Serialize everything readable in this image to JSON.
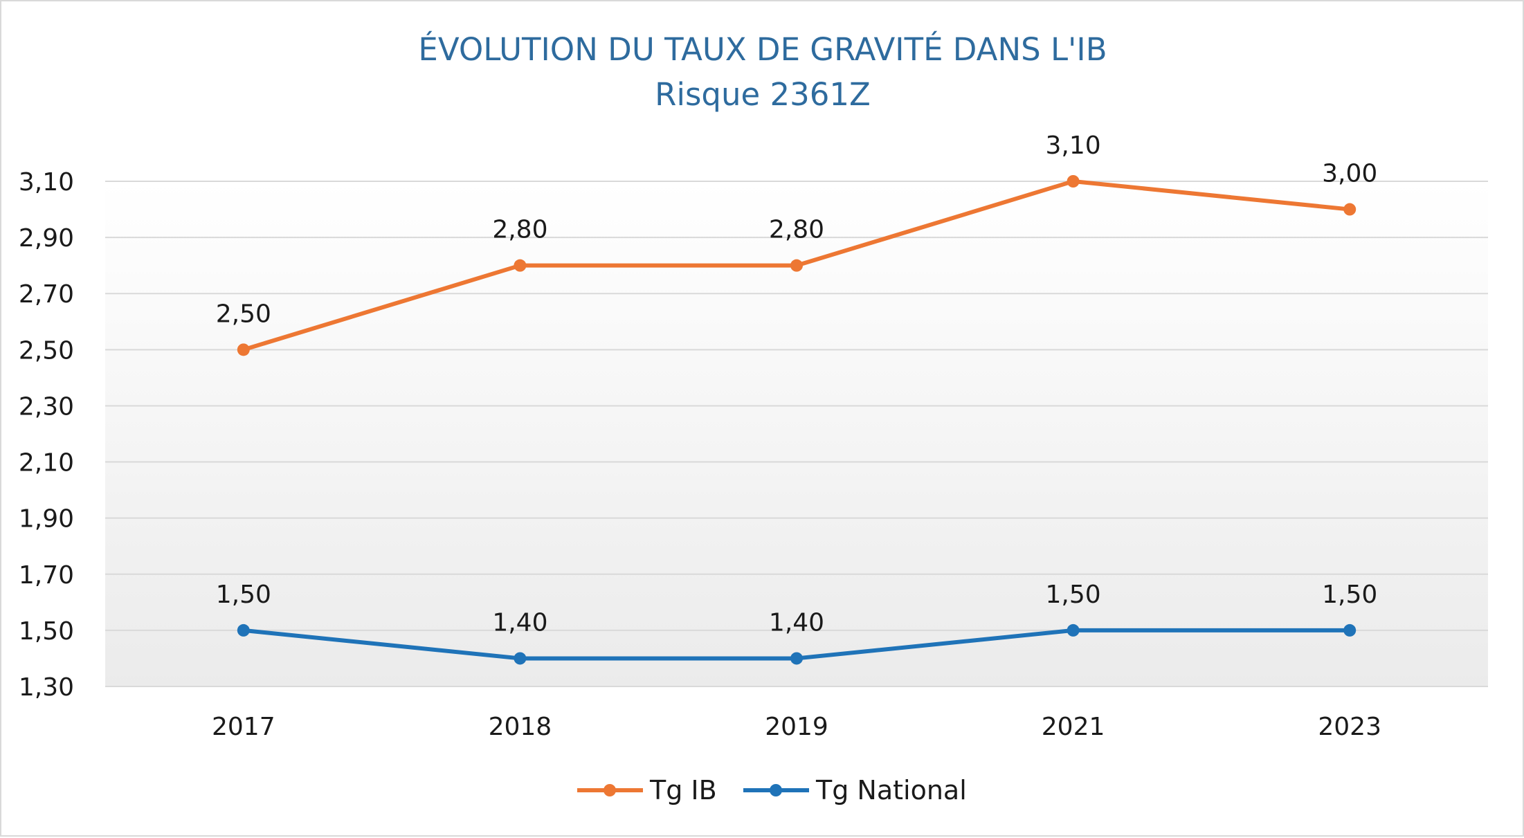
{
  "chart_data": {
    "type": "line",
    "title": "ÉVOLUTION DU TAUX DE GRAVITÉ DANS L'IB",
    "subtitle": "Risque 2361Z",
    "categories": [
      "2017",
      "2018",
      "2019",
      "2021",
      "2023"
    ],
    "series": [
      {
        "name": "Tg IB",
        "color": "#ed7733",
        "values": [
          2.5,
          2.8,
          2.8,
          3.1,
          3.0
        ],
        "labels": [
          "2,50",
          "2,80",
          "2,80",
          "3,10",
          "3,00"
        ]
      },
      {
        "name": "Tg National",
        "color": "#1f73b8",
        "values": [
          1.5,
          1.4,
          1.4,
          1.5,
          1.5
        ],
        "labels": [
          "1,50",
          "1,40",
          "1,40",
          "1,50",
          "1,50"
        ]
      }
    ],
    "y_ticks": [
      1.3,
      1.5,
      1.7,
      1.9,
      2.1,
      2.3,
      2.5,
      2.7,
      2.9,
      3.1
    ],
    "y_tick_labels": [
      "1,30",
      "1,50",
      "1,70",
      "1,90",
      "2,10",
      "2,30",
      "2,50",
      "2,70",
      "2,90",
      "3,10"
    ],
    "ylim": [
      1.3,
      3.1
    ],
    "grid": true,
    "legend_position": "bottom",
    "plot_background": "vertical gradient white to light gray"
  }
}
